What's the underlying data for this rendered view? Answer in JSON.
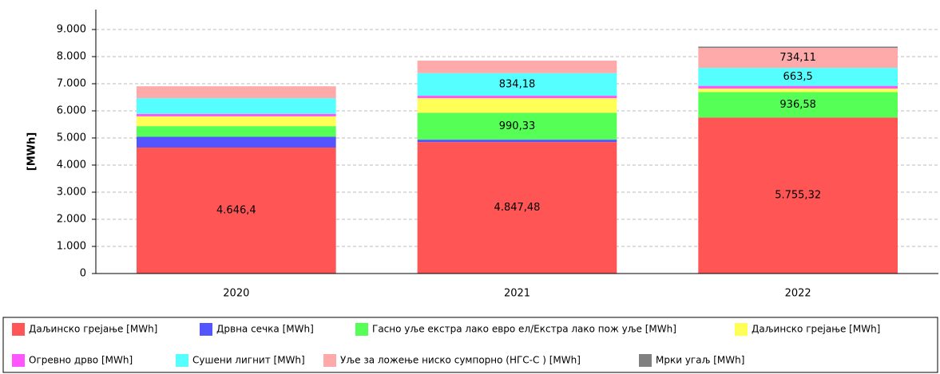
{
  "chart_data": {
    "type": "stacked_bar",
    "y_label": "[MWh]",
    "categories": [
      "2020",
      "2021",
      "2022"
    ],
    "ylim": [
      0,
      9000
    ],
    "yticks": [
      0,
      {
        "value": 1000,
        "label": "1.000"
      },
      {
        "value": 2000,
        "label": "2.000"
      },
      {
        "value": 3000,
        "label": "3.000"
      },
      {
        "value": 4000,
        "label": "4.000"
      },
      {
        "value": 5000,
        "label": "5.000"
      },
      {
        "value": 6000,
        "label": "6.000"
      },
      {
        "value": 7000,
        "label": "7.000"
      },
      {
        "value": 8000,
        "label": "8.000"
      },
      {
        "value": 9000,
        "label": "9.000"
      }
    ],
    "grid": true,
    "legend": "bottom",
    "series": [
      {
        "name": "Даљинско грејање [MWh]",
        "color": "#ff5555",
        "values": [
          4646.4,
          4847.48,
          5755.32
        ],
        "value_labels": [
          "4.646,4",
          "4.847,48",
          "5.755,32"
        ]
      },
      {
        "name": "Дрвна сечка [MWh]",
        "color": "#5555ff",
        "values": [
          400,
          90,
          0
        ]
      },
      {
        "name": "Гасно уље екстра лако евро ел/Екстра лако пож уље [MWh]",
        "color": "#55ff55",
        "values": [
          390,
          990.33,
          936.58
        ],
        "value_labels": [
          null,
          "990,33",
          "936,58"
        ]
      },
      {
        "name": "Даљинско грејање [MWh]",
        "color": "#ffff55",
        "values": [
          360,
          540,
          130
        ]
      },
      {
        "name": "Огревно дрво [MWh]",
        "color": "#ff55ff",
        "values": [
          90,
          90,
          100
        ]
      },
      {
        "name": "Сушени лигнит [MWh]",
        "color": "#55ffff",
        "values": [
          580,
          834.18,
          663.5
        ],
        "value_labels": [
          null,
          "834,18",
          "663,5"
        ]
      },
      {
        "name": "Уље за ложење ниско сумпорно (НГС-С ) [MWh]",
        "color": "#ffaaaa",
        "values": [
          440,
          460,
          734.11
        ],
        "value_labels": [
          null,
          null,
          "734,11"
        ]
      },
      {
        "name": "Мрки угаљ [MWh]",
        "color": "#808080",
        "values": [
          0,
          0,
          50
        ]
      }
    ]
  }
}
